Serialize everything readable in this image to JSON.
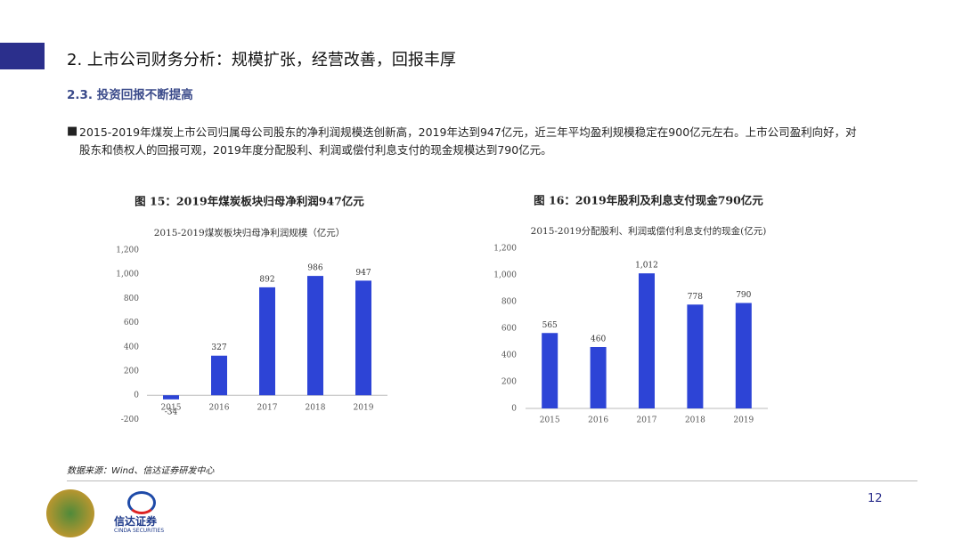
{
  "header": {
    "title": "2. 上市公司财务分析：规模扩张，经营改善，回报丰厚",
    "subtitle": "2.3. 投资回报不断提高"
  },
  "body": {
    "paragraph": "2015-2019年煤炭上市公司归属母公司股东的净利润规模迭创新高，2019年达到947亿元，近三年平均盈利规模稳定在900亿元左右。上市公司盈利向好，对股东和债权人的回报可观，2019年度分配股利、利润或偿付利息支付的现金规模达到790亿元。"
  },
  "chart_data": [
    {
      "type": "bar",
      "title": "图 15：2019年煤炭板块归母净利润947亿元",
      "subtitle": "2015-2019煤炭板块归母净利润规模（亿元）",
      "categories": [
        "2015",
        "2016",
        "2017",
        "2018",
        "2019"
      ],
      "values": [
        -34,
        327,
        892,
        986,
        947
      ],
      "color": "#2d44d6",
      "ylim": [
        -200,
        1200
      ],
      "yticks": [
        -200,
        0,
        200,
        400,
        600,
        800,
        {
          "value": 1000,
          "label": "1,000"
        },
        {
          "value": 1200,
          "label": "1,200"
        }
      ]
    },
    {
      "type": "bar",
      "title": "图 16：2019年股利及利息支付现金790亿元",
      "subtitle": "2015-2019分配股利、利润或偿付利息支付的现金(亿元)",
      "categories": [
        "2015",
        "2016",
        "2017",
        "2018",
        "2019"
      ],
      "values": [
        565,
        460,
        1012,
        778,
        790
      ],
      "value_labels": [
        "565",
        "460",
        "1,012",
        "778",
        "790"
      ],
      "color": "#2d44d6",
      "ylim": [
        0,
        1200
      ],
      "yticks": [
        0,
        200,
        400,
        600,
        800,
        {
          "value": 1000,
          "label": "1,000"
        },
        {
          "value": 1200,
          "label": "1,200"
        }
      ]
    }
  ],
  "footer": {
    "source": "数据来源：Wind、信达证券研发中心",
    "page": "12",
    "logo_name": "信达证券",
    "logo_english": "CINDA SECURITIES"
  }
}
